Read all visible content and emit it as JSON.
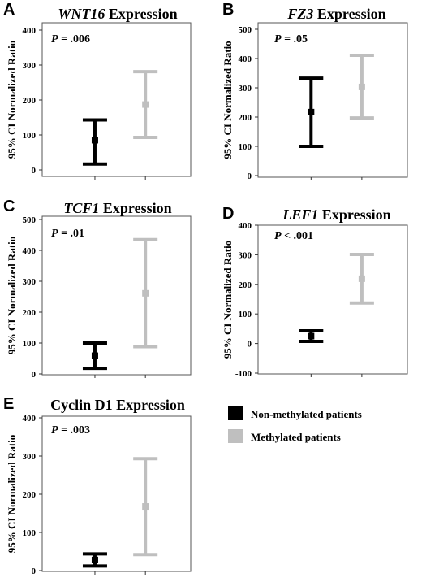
{
  "colors": {
    "non_methylated": "#000000",
    "methylated": "#bfbfbf"
  },
  "legend": {
    "non_methylated": "Non-methylated patients",
    "methylated": "Methylated patients"
  },
  "chart_data": [
    {
      "type": "errorbar",
      "letter": "A",
      "gene": "WNT16",
      "title_suffix": " Expression",
      "gene_italic": true,
      "pvalue": {
        "p": "P",
        "rest": " = .006"
      },
      "ylabel": "95% CI Normalized Ratio",
      "ylim": [
        0,
        400
      ],
      "yticks": [
        0,
        100,
        200,
        300,
        400
      ],
      "series": [
        {
          "group": "non_methylated",
          "mean": 85,
          "lower": 17,
          "upper": 143
        },
        {
          "group": "methylated",
          "mean": 187,
          "lower": 93,
          "upper": 281
        }
      ]
    },
    {
      "type": "errorbar",
      "letter": "B",
      "gene": "FZ3",
      "title_suffix": " Expression",
      "gene_italic": true,
      "pvalue": {
        "p": "P",
        "rest": " = .05"
      },
      "ylabel": "95% CI Normalized Ratio",
      "ylim": [
        0,
        500
      ],
      "yticks": [
        0,
        100,
        200,
        300,
        400,
        500
      ],
      "series": [
        {
          "group": "non_methylated",
          "mean": 217,
          "lower": 100,
          "upper": 333
        },
        {
          "group": "methylated",
          "mean": 303,
          "lower": 197,
          "upper": 411
        }
      ]
    },
    {
      "type": "errorbar",
      "letter": "C",
      "gene": "TCF1",
      "title_suffix": " Expression",
      "gene_italic": true,
      "pvalue": {
        "p": "P",
        "rest": " = .01"
      },
      "ylabel": "95% CI Normalized Ratio",
      "ylim": [
        0,
        500
      ],
      "yticks": [
        0,
        100,
        200,
        300,
        400,
        500
      ],
      "series": [
        {
          "group": "non_methylated",
          "mean": 59,
          "lower": 18,
          "upper": 100
        },
        {
          "group": "methylated",
          "mean": 261,
          "lower": 88,
          "upper": 435
        }
      ]
    },
    {
      "type": "errorbar",
      "letter": "D",
      "gene": "LEF1",
      "title_suffix": " Expression",
      "gene_italic": true,
      "pvalue": {
        "p": "P",
        "rest": " < .001"
      },
      "ylabel": "95% CI Normalized Ratio",
      "ylim": [
        -100,
        400
      ],
      "yticks": [
        -100,
        0,
        100,
        200,
        300,
        400
      ],
      "series": [
        {
          "group": "non_methylated",
          "mean": 25,
          "lower": 7,
          "upper": 43
        },
        {
          "group": "methylated",
          "mean": 219,
          "lower": 137,
          "upper": 301
        }
      ]
    },
    {
      "type": "errorbar",
      "letter": "E",
      "gene": "Cyclin D1",
      "title_suffix": " Expression",
      "gene_italic": false,
      "pvalue": {
        "p": "P",
        "rest": " = .003"
      },
      "ylabel": "95% CI Normalized Ratio",
      "ylim": [
        0,
        400
      ],
      "yticks": [
        0,
        100,
        200,
        300,
        400
      ],
      "series": [
        {
          "group": "non_methylated",
          "mean": 28,
          "lower": 12,
          "upper": 44
        },
        {
          "group": "methylated",
          "mean": 168,
          "lower": 42,
          "upper": 293
        }
      ]
    }
  ]
}
